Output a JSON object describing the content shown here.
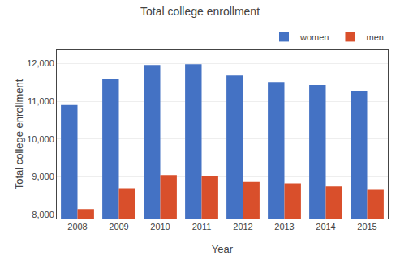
{
  "chart_data": {
    "type": "bar",
    "title": "Total college enrollment",
    "xlabel": "Year",
    "ylabel": "Total college enrollment",
    "categories": [
      "2008",
      "2009",
      "2010",
      "2011",
      "2012",
      "2013",
      "2014",
      "2015"
    ],
    "series": [
      {
        "name": "women",
        "color": "#4472C4",
        "values": [
          10900,
          11580,
          11960,
          11980,
          11680,
          11510,
          11430,
          11260
        ]
      },
      {
        "name": "men",
        "color": "#D94F2B",
        "values": [
          8150,
          8700,
          9050,
          9020,
          8870,
          8830,
          8750,
          8660
        ]
      }
    ],
    "ylim": [
      7900,
      12350
    ],
    "yticks": [
      {
        "value": 8000,
        "label": "8,000"
      },
      {
        "value": 9000,
        "label": "9,000"
      },
      {
        "value": 10000,
        "label": "10,000"
      },
      {
        "value": 11000,
        "label": "11,000"
      },
      {
        "value": 12000,
        "label": "12,000"
      }
    ],
    "grid": true,
    "legend": "upper right"
  }
}
